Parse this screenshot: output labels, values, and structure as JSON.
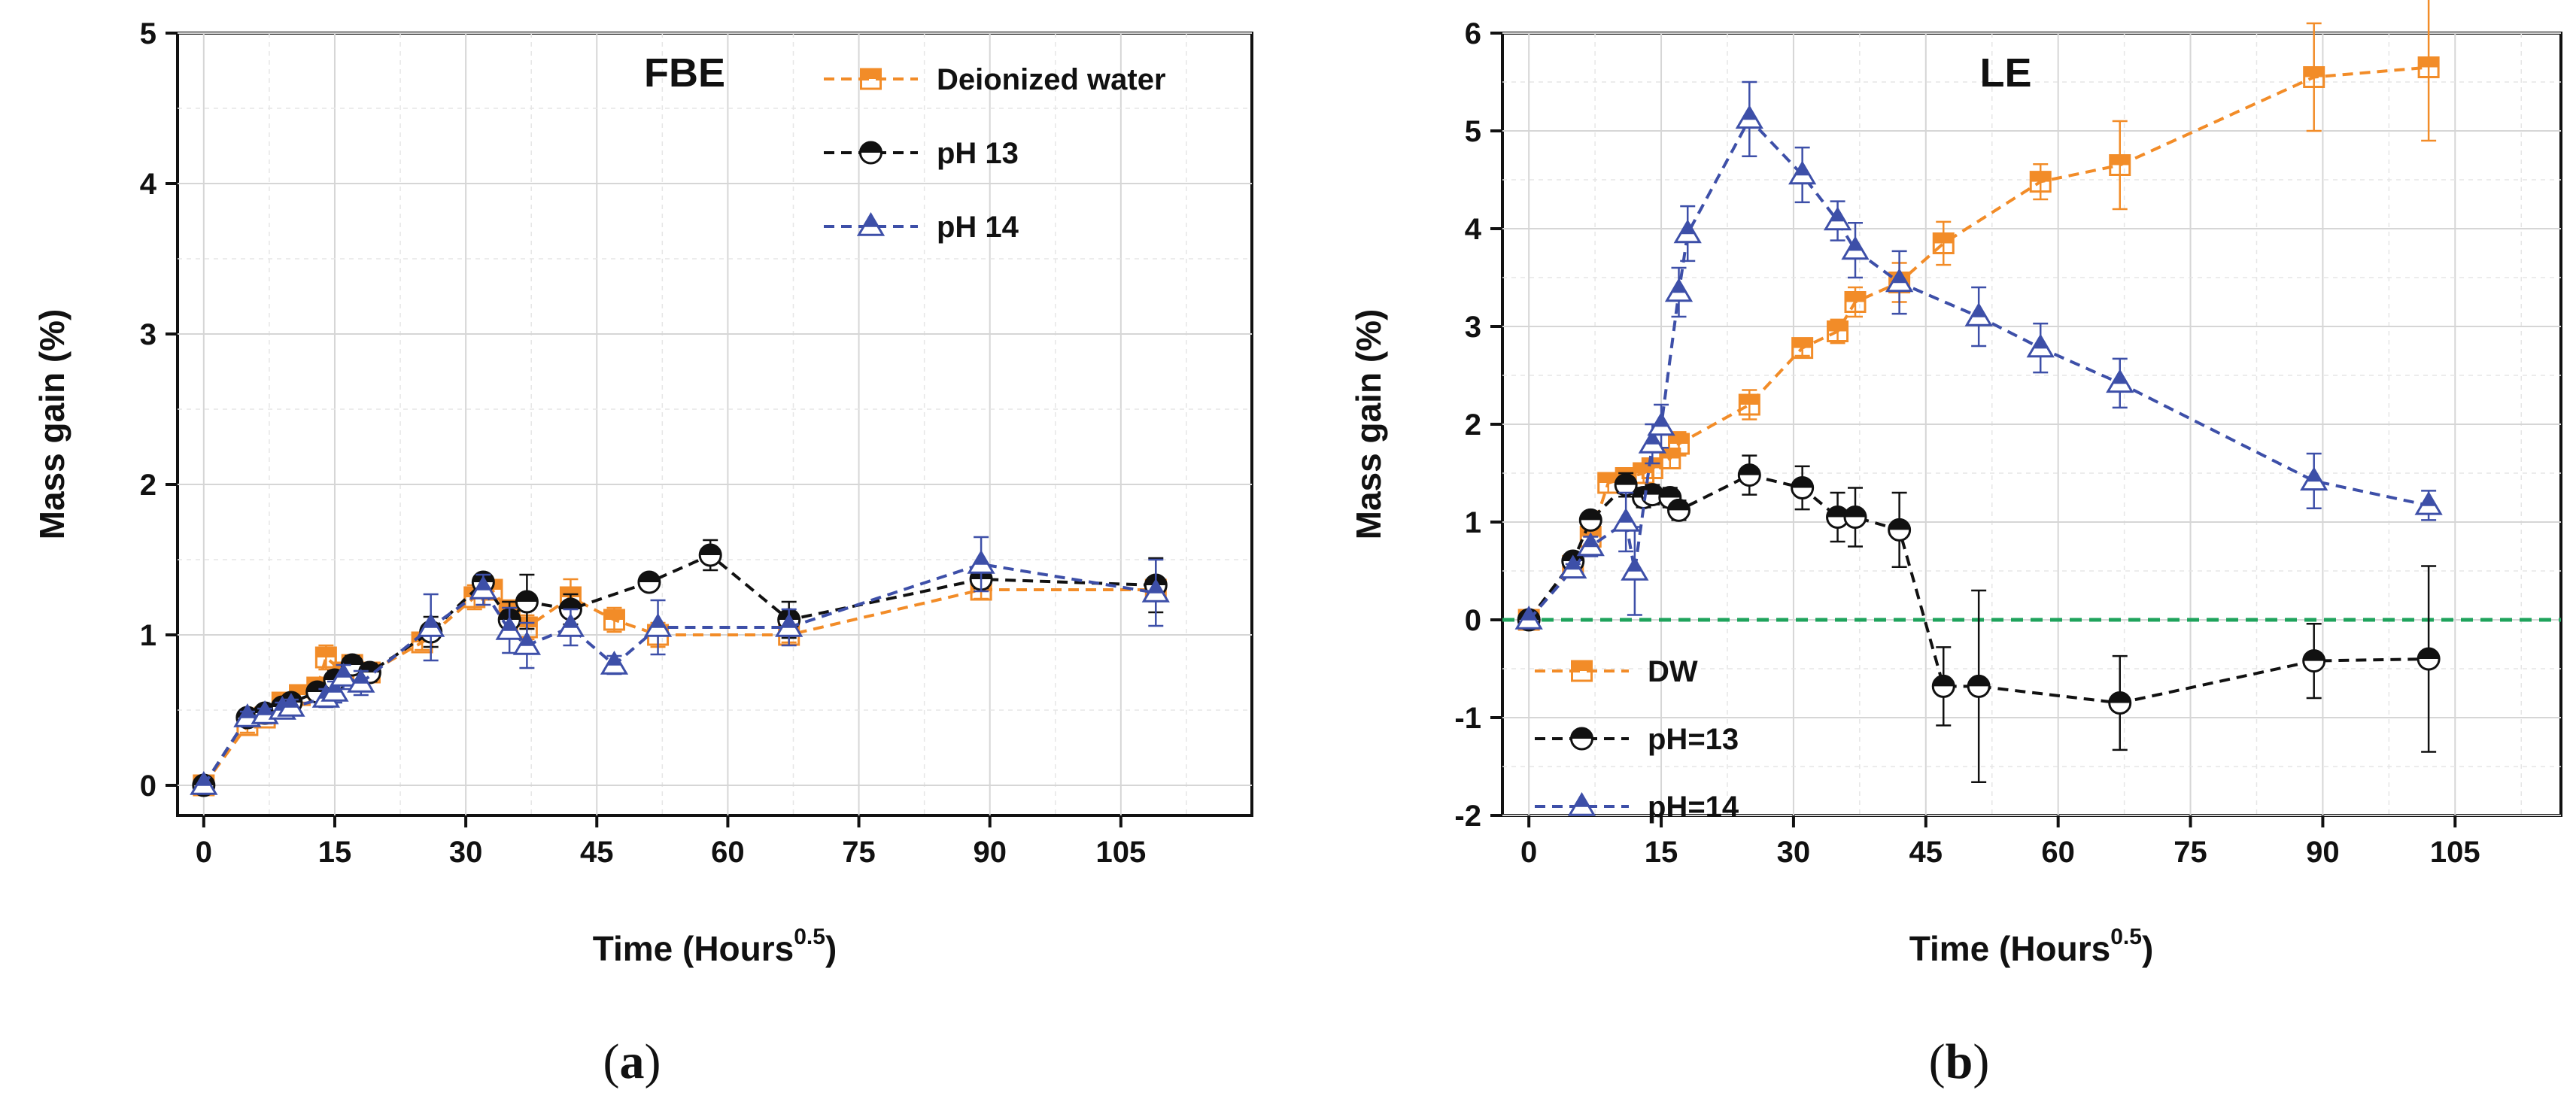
{
  "chart_data": [
    {
      "type": "line",
      "title": "FBE",
      "xlabel": "Time (Hours",
      "xlabel_sup": "0.5",
      "xlabel_close": ")",
      "ylabel": "Mass gain (%)",
      "xlim": [
        -3,
        120
      ],
      "ylim": [
        -0.2,
        5
      ],
      "xticks": [
        0,
        15,
        30,
        45,
        60,
        75,
        90,
        105
      ],
      "yticks": [
        0,
        1,
        2,
        3,
        4,
        5
      ],
      "legend_position": "top-right",
      "caption": "a",
      "series": [
        {
          "name": "Deionized water",
          "color": "#f28c28",
          "marker": "square",
          "x": [
            0,
            5,
            7,
            9,
            11,
            13,
            14,
            16,
            17,
            19,
            25,
            31,
            33,
            35,
            37,
            42,
            47,
            52,
            67,
            89,
            109
          ],
          "y": [
            0,
            0.4,
            0.45,
            0.55,
            0.6,
            0.65,
            0.85,
            0.75,
            0.8,
            0.75,
            0.95,
            1.25,
            1.3,
            1.15,
            1.05,
            1.25,
            1.1,
            1.0,
            1.0,
            1.3,
            1.3
          ],
          "err": [
            0,
            0.05,
            0.04,
            0.05,
            0.05,
            0.05,
            0.08,
            0.06,
            0.06,
            0.06,
            0.05,
            0.08,
            0.06,
            0.08,
            0.08,
            0.12,
            0.08,
            0.08,
            0.05,
            0.06,
            0.06
          ]
        },
        {
          "name": "pH 13",
          "color": "#111111",
          "marker": "half-circle",
          "x": [
            0,
            5,
            7,
            9,
            10,
            13,
            15,
            17,
            19,
            26,
            32,
            35,
            37,
            42,
            51,
            58,
            67,
            89,
            109
          ],
          "y": [
            0,
            0.45,
            0.48,
            0.52,
            0.55,
            0.62,
            0.7,
            0.8,
            0.75,
            1.02,
            1.35,
            1.1,
            1.22,
            1.17,
            1.35,
            1.53,
            1.1,
            1.37,
            1.33
          ],
          "err": [
            0,
            0.04,
            0.04,
            0.04,
            0.04,
            0.05,
            0.06,
            0.06,
            0.06,
            0.1,
            0.04,
            0.12,
            0.18,
            0.1,
            0.04,
            0.1,
            0.12,
            0.06,
            0.18
          ]
        },
        {
          "name": "pH 14",
          "color": "#3d4fa8",
          "marker": "triangle",
          "x": [
            0,
            5,
            7,
            9,
            10,
            14,
            15,
            16,
            18,
            26,
            32,
            35,
            37,
            42,
            47,
            52,
            67,
            89,
            109
          ],
          "y": [
            0,
            0.45,
            0.47,
            0.5,
            0.52,
            0.58,
            0.62,
            0.72,
            0.68,
            1.05,
            1.3,
            1.03,
            0.93,
            1.05,
            0.8,
            1.05,
            1.05,
            1.47,
            1.28
          ],
          "err": [
            0,
            0.04,
            0.04,
            0.05,
            0.05,
            0.06,
            0.07,
            0.08,
            0.08,
            0.22,
            0.1,
            0.15,
            0.15,
            0.12,
            0.06,
            0.18,
            0.12,
            0.18,
            0.22
          ]
        }
      ]
    },
    {
      "type": "line",
      "title": "LE",
      "xlabel": "Time (Hours",
      "xlabel_sup": "0.5",
      "xlabel_close": ")",
      "ylabel": "Mass gain (%)",
      "xlim": [
        -3,
        117
      ],
      "ylim": [
        -2,
        6
      ],
      "xticks": [
        0,
        15,
        30,
        45,
        60,
        75,
        90,
        105
      ],
      "yticks": [
        -2,
        -1,
        0,
        1,
        2,
        3,
        4,
        5,
        6
      ],
      "legend_position": "bottom-left",
      "reference_line": {
        "y": 0,
        "color": "#1fa35c"
      },
      "caption": "b",
      "series": [
        {
          "name": "DW",
          "color": "#f28c28",
          "marker": "square",
          "x": [
            0,
            5,
            7,
            9,
            11,
            13,
            14,
            16,
            17,
            25,
            31,
            35,
            37,
            42,
            47,
            58,
            67,
            89,
            102
          ],
          "y": [
            0,
            0.55,
            0.85,
            1.4,
            1.45,
            1.5,
            1.55,
            1.65,
            1.8,
            2.2,
            2.78,
            2.95,
            3.25,
            3.45,
            3.85,
            4.48,
            4.65,
            5.55,
            5.65
          ],
          "err": [
            0,
            0.05,
            0.08,
            0.1,
            0.1,
            0.1,
            0.1,
            0.1,
            0.12,
            0.15,
            0.08,
            0.12,
            0.15,
            0.2,
            0.22,
            0.18,
            0.45,
            0.55,
            0.75
          ]
        },
        {
          "name": "pH=13",
          "color": "#111111",
          "marker": "half-circle",
          "x": [
            0,
            5,
            7,
            11,
            13,
            14,
            16,
            17,
            25,
            31,
            35,
            37,
            42,
            47,
            51,
            67,
            89,
            102
          ],
          "y": [
            0,
            0.6,
            1.02,
            1.38,
            1.25,
            1.28,
            1.25,
            1.12,
            1.48,
            1.35,
            1.05,
            1.05,
            0.92,
            -0.68,
            -0.68,
            -0.85,
            -0.42,
            -0.4
          ],
          "err": [
            0,
            0.05,
            0.08,
            0.12,
            0.1,
            0.1,
            0.1,
            0.1,
            0.2,
            0.22,
            0.25,
            0.3,
            0.38,
            0.4,
            0.98,
            0.48,
            0.38,
            0.95
          ]
        },
        {
          "name": "pH=14",
          "color": "#3d4fa8",
          "marker": "triangle",
          "x": [
            0,
            5,
            7,
            11,
            12,
            14,
            15,
            17,
            18,
            25,
            31,
            35,
            37,
            42,
            51,
            58,
            67,
            89,
            102
          ],
          "y": [
            0,
            0.52,
            0.75,
            1.0,
            0.5,
            1.8,
            1.98,
            3.35,
            3.95,
            5.12,
            4.55,
            4.08,
            3.78,
            3.45,
            3.1,
            2.78,
            2.42,
            1.42,
            1.17
          ],
          "err": [
            0,
            0.05,
            0.1,
            0.3,
            0.45,
            0.2,
            0.22,
            0.25,
            0.28,
            0.38,
            0.28,
            0.2,
            0.28,
            0.32,
            0.3,
            0.25,
            0.25,
            0.28,
            0.15
          ]
        }
      ]
    }
  ]
}
